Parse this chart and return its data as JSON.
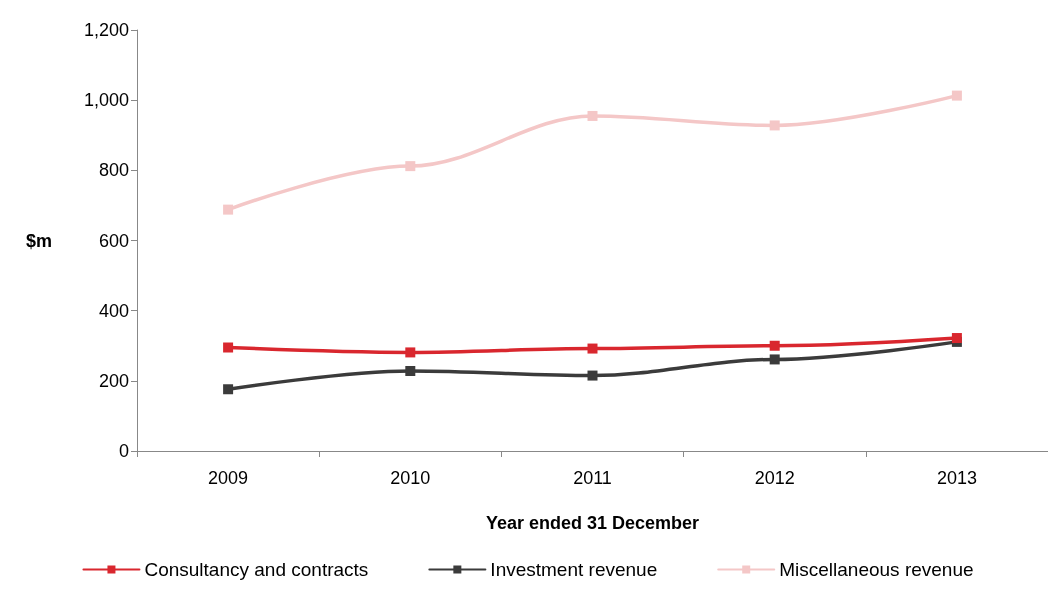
{
  "chart_data": {
    "type": "line",
    "xlabel": "Year ended 31 December",
    "ylabel": "$m",
    "categories": [
      "2009",
      "2010",
      "2011",
      "2012",
      "2013"
    ],
    "series": [
      {
        "name": "Consultancy and contracts",
        "color": "#d9272e",
        "values": [
          295,
          281,
          292,
          300,
          322
        ]
      },
      {
        "name": "Investment revenue",
        "color": "#3b3b3b",
        "values": [
          176,
          228,
          215,
          261,
          311
        ]
      },
      {
        "name": "Miscellaneous revenue",
        "color": "#f4c7c7",
        "values": [
          688,
          812,
          955,
          928,
          1013
        ]
      }
    ],
    "ylim": [
      0,
      1200
    ],
    "yticks": [
      0,
      200,
      400,
      600,
      800,
      {
        "value": 1000,
        "label": "1,000"
      },
      {
        "value": 1200,
        "label": "1,200"
      }
    ],
    "grid": false,
    "legend": "bottom",
    "marker": "square",
    "line_style": "solid"
  }
}
